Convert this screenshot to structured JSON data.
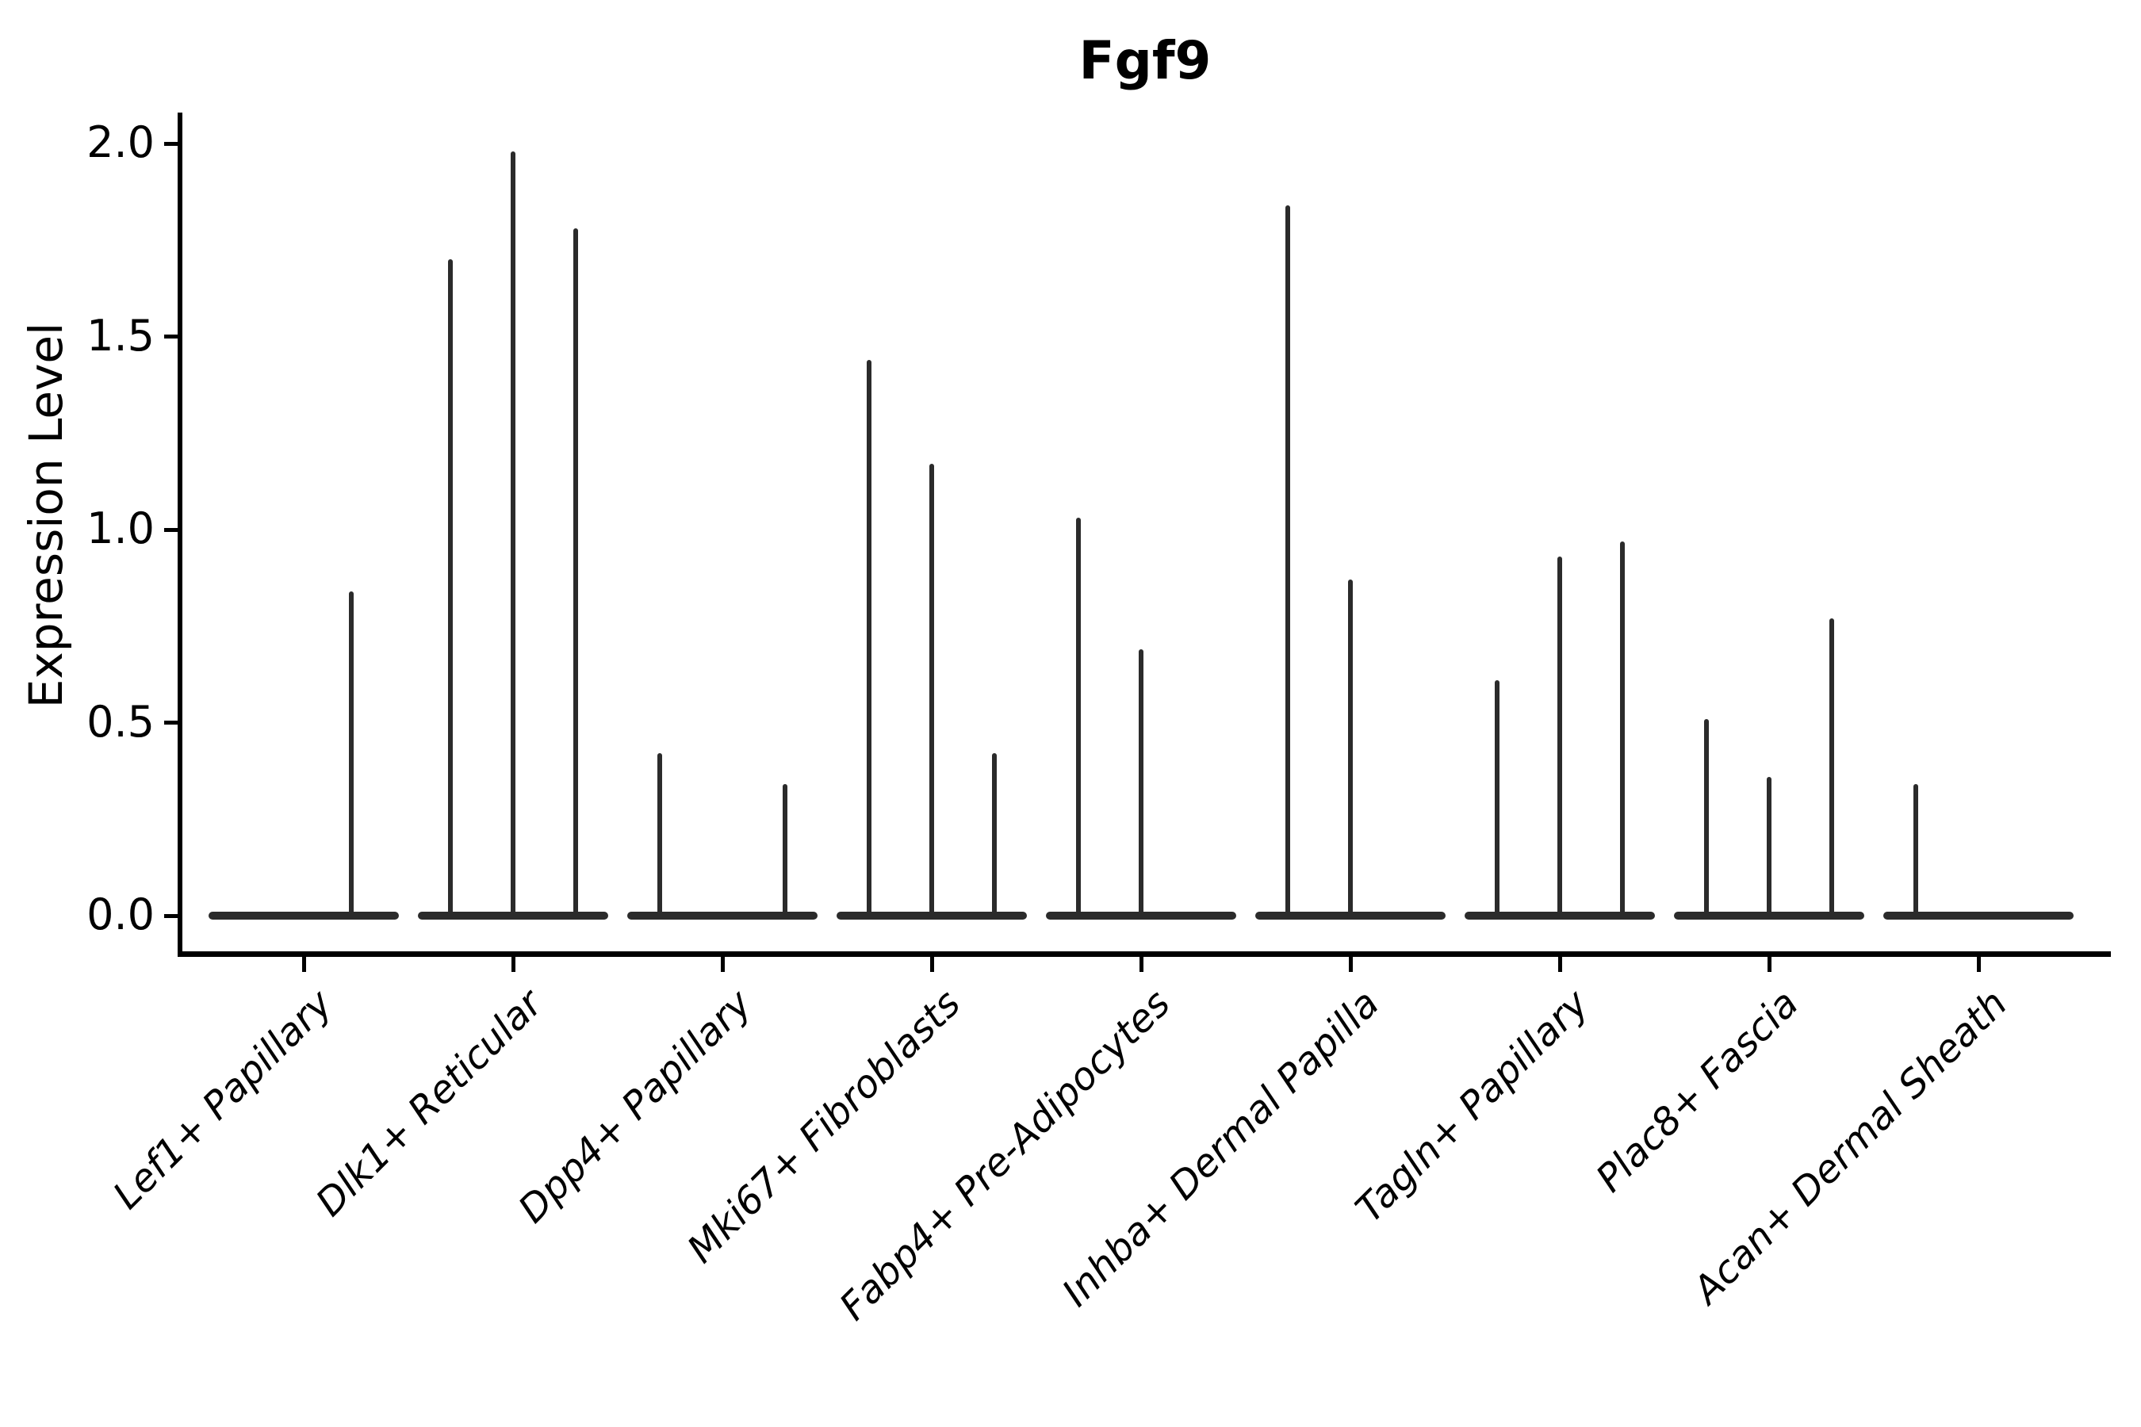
{
  "figure": {
    "title": "Fgf9",
    "ylabel": "Expression Level"
  },
  "chart_data": {
    "type": "violin",
    "title": "Fgf9",
    "xlabel": "",
    "ylabel": "Expression Level",
    "ytick_labels": [
      "0.0",
      "0.5",
      "1.0",
      "1.5",
      "2.0"
    ],
    "ytick_values": [
      0.0,
      0.5,
      1.0,
      1.5,
      2.0
    ],
    "ylim": [
      -0.1,
      2.08
    ],
    "grid": false,
    "legend": "none",
    "background": "#ffffff",
    "ink_color": "#000000",
    "violin_color": "#2b2b2b",
    "note": "Single-cell violin plot; each category shows a flattened zero-density bar plus thin spike violins whose tips mark the max expression value. dx = horizontal offset (px) of each spike violin from the category center.",
    "categories": [
      {
        "label": "Lef1+ Papillary",
        "zero_bar": true,
        "spikes": [
          {
            "dx": 60,
            "max": 0.84
          }
        ]
      },
      {
        "label": "Dlk1+ Reticular",
        "zero_bar": true,
        "spikes": [
          {
            "dx": -79,
            "max": 1.7
          },
          {
            "dx": 0,
            "max": 1.98
          },
          {
            "dx": 79,
            "max": 1.78
          }
        ]
      },
      {
        "label": "Dpp4+ Papillary",
        "zero_bar": true,
        "spikes": [
          {
            "dx": -79,
            "max": 0.42
          },
          {
            "dx": 79,
            "max": 0.34
          }
        ]
      },
      {
        "label": "Mki67+ Fibroblasts",
        "zero_bar": true,
        "spikes": [
          {
            "dx": -79,
            "max": 1.44
          },
          {
            "dx": 0,
            "max": 1.17
          },
          {
            "dx": 79,
            "max": 0.42
          }
        ]
      },
      {
        "label": "Fabp4+ Pre-Adipocytes",
        "zero_bar": true,
        "spikes": [
          {
            "dx": -79,
            "max": 1.03
          },
          {
            "dx": 0,
            "max": 0.69
          }
        ]
      },
      {
        "label": "Inhba+ Dermal Papilla",
        "zero_bar": true,
        "spikes": [
          {
            "dx": -79,
            "max": 1.84
          },
          {
            "dx": 0,
            "max": 0.87
          }
        ]
      },
      {
        "label": "Tagln+ Papillary",
        "zero_bar": true,
        "spikes": [
          {
            "dx": -79,
            "max": 0.61
          },
          {
            "dx": 0,
            "max": 0.93
          },
          {
            "dx": 79,
            "max": 0.97
          }
        ]
      },
      {
        "label": "Plac8+ Fascia",
        "zero_bar": true,
        "spikes": [
          {
            "dx": -79,
            "max": 0.51
          },
          {
            "dx": 0,
            "max": 0.36
          },
          {
            "dx": 79,
            "max": 0.77
          }
        ]
      },
      {
        "label": "Acan+ Dermal Sheath",
        "zero_bar": true,
        "spikes": [
          {
            "dx": -79,
            "max": 0.34
          }
        ]
      }
    ]
  }
}
